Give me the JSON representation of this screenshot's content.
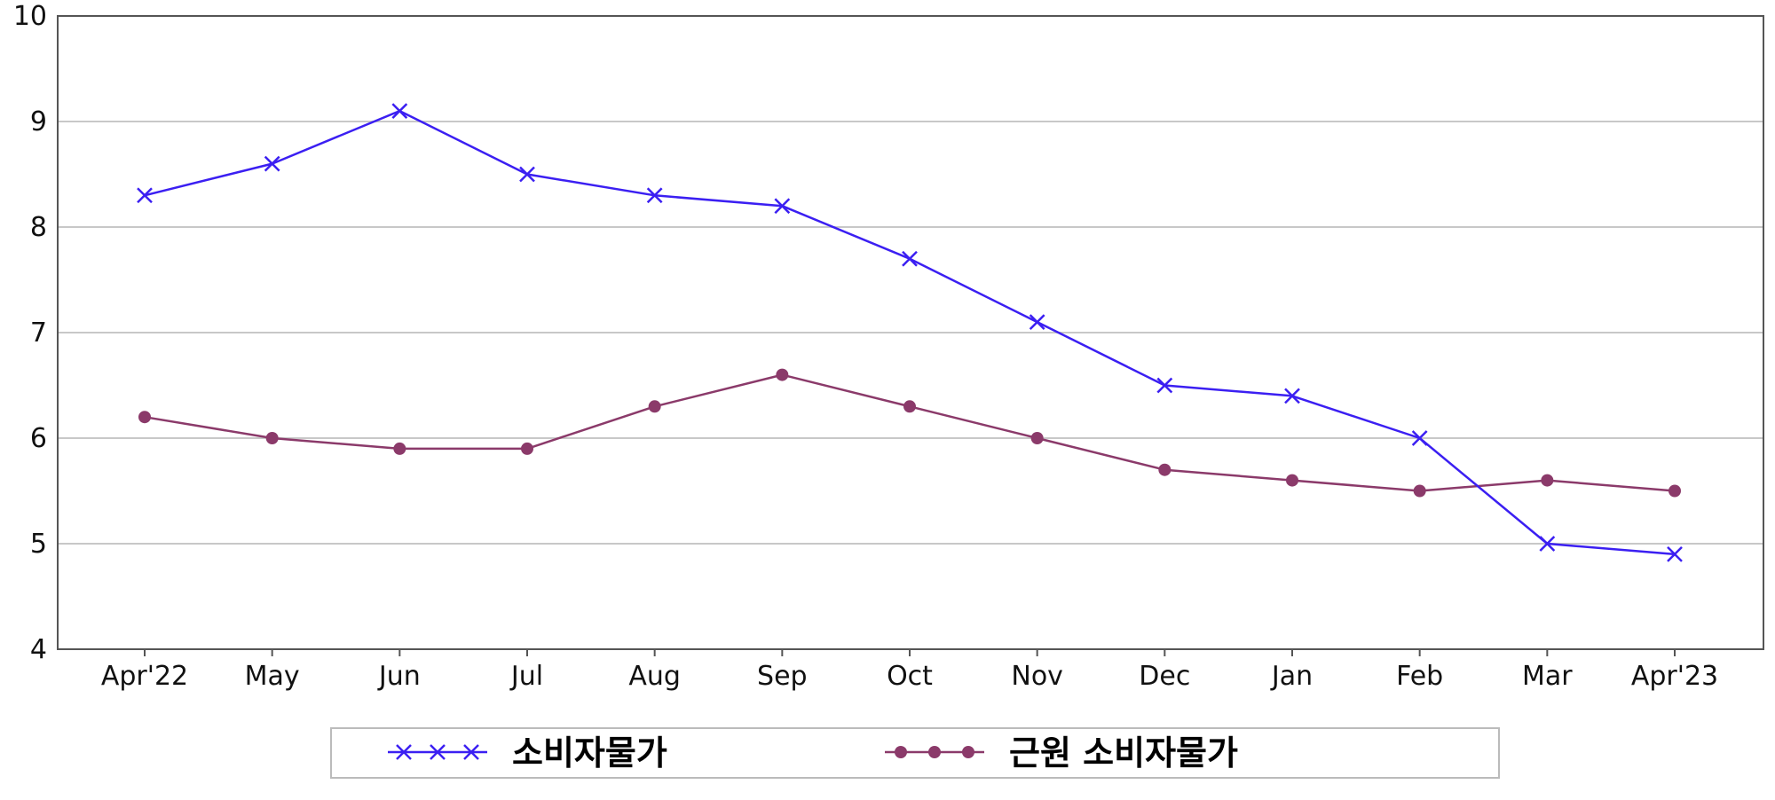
{
  "chart_data": {
    "type": "line",
    "categories": [
      "Apr'22",
      "May",
      "Jun",
      "Jul",
      "Aug",
      "Sep",
      "Oct",
      "Nov",
      "Dec",
      "Jan",
      "Feb",
      "Mar",
      "Apr'23"
    ],
    "series": [
      {
        "name": "소비자물가",
        "color": "#3b1ff2",
        "marker": "x",
        "values": [
          8.3,
          8.6,
          9.1,
          8.5,
          8.3,
          8.2,
          7.7,
          7.1,
          6.5,
          6.4,
          6.0,
          5.0,
          4.9
        ]
      },
      {
        "name": "근원 소비자물가",
        "color": "#8b3a6a",
        "marker": "circle",
        "values": [
          6.2,
          6.0,
          5.9,
          5.9,
          6.3,
          6.6,
          6.3,
          6.0,
          5.7,
          5.6,
          5.5,
          5.6,
          5.5
        ]
      }
    ],
    "ylim": [
      4,
      10
    ],
    "yticks": [
      4,
      5,
      6,
      7,
      8,
      9,
      10
    ],
    "grid": true,
    "legend": "bottom"
  }
}
